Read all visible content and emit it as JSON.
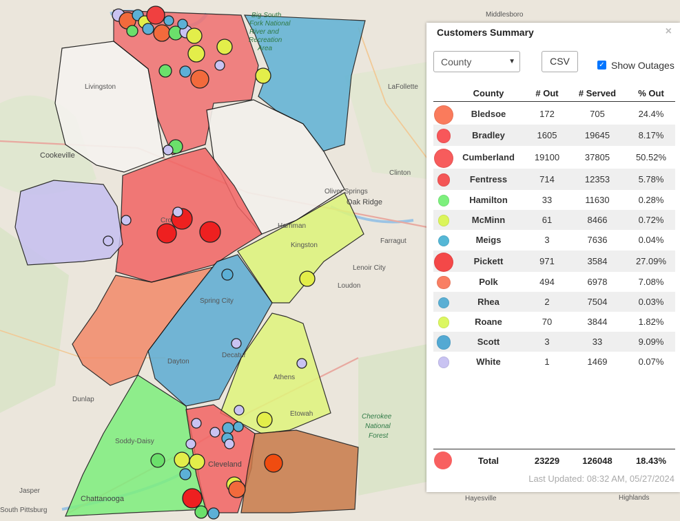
{
  "map": {
    "places": [
      {
        "name": "Middlesboro",
        "cls": "place"
      },
      {
        "name": "Livingston",
        "cls": "place"
      },
      {
        "name": "LaFollette",
        "cls": "place"
      },
      {
        "name": "Cookeville",
        "cls": "place-lg"
      },
      {
        "name": "Clinton",
        "cls": "place"
      },
      {
        "name": "Oliver Springs",
        "cls": "place"
      },
      {
        "name": "Oak Ridge",
        "cls": "place-lg"
      },
      {
        "name": "Farragut",
        "cls": "place"
      },
      {
        "name": "Harriman",
        "cls": "place"
      },
      {
        "name": "Kingston",
        "cls": "place"
      },
      {
        "name": "Crossville",
        "cls": "place"
      },
      {
        "name": "Lenoir City",
        "cls": "place"
      },
      {
        "name": "Loudon",
        "cls": "place"
      },
      {
        "name": "Spring City",
        "cls": "place"
      },
      {
        "name": "Dayton",
        "cls": "place"
      },
      {
        "name": "Decatur",
        "cls": "place"
      },
      {
        "name": "Athens",
        "cls": "place"
      },
      {
        "name": "Dunlap",
        "cls": "place"
      },
      {
        "name": "Etowah",
        "cls": "place"
      },
      {
        "name": "Soddy-Daisy",
        "cls": "place"
      },
      {
        "name": "Cleveland",
        "cls": "place-lg"
      },
      {
        "name": "Chattanooga",
        "cls": "place-lg"
      },
      {
        "name": "Jasper",
        "cls": "place"
      },
      {
        "name": "South Pittsburg",
        "cls": "place"
      },
      {
        "name": "Hayesville",
        "cls": "place"
      },
      {
        "name": "Highlands",
        "cls": "place"
      }
    ],
    "green_labels": [
      "Big South",
      "Fork National",
      "River and",
      "Recreation",
      "Area",
      "Cherokee",
      "National",
      "Forest"
    ]
  },
  "panel": {
    "title": "Customers Summary",
    "close_icon": "×",
    "group_select": "County",
    "csv_label": "CSV",
    "show_outages_label": "Show Outages",
    "show_outages_checked": true,
    "headers": {
      "name": "County",
      "out": "# Out",
      "served": "# Served",
      "pct": "% Out"
    },
    "rows": [
      {
        "name": "Bledsoe",
        "out": "172",
        "served": "705",
        "pct": "24.4%",
        "color": "#fa7b5c"
      },
      {
        "name": "Bradley",
        "out": "1605",
        "served": "19645",
        "pct": "8.17%",
        "color": "#f8575a"
      },
      {
        "name": "Cumberland",
        "out": "19100",
        "served": "37805",
        "pct": "50.52%",
        "color": "#f75c5c"
      },
      {
        "name": "Fentress",
        "out": "714",
        "served": "12353",
        "pct": "5.78%",
        "color": "#f45656"
      },
      {
        "name": "Hamilton",
        "out": "33",
        "served": "11630",
        "pct": "0.28%",
        "color": "#7df07d"
      },
      {
        "name": "McMinn",
        "out": "61",
        "served": "8466",
        "pct": "0.72%",
        "color": "#dbf55b"
      },
      {
        "name": "Meigs",
        "out": "3",
        "served": "7636",
        "pct": "0.04%",
        "color": "#55b7d6"
      },
      {
        "name": "Pickett",
        "out": "971",
        "served": "3584",
        "pct": "27.09%",
        "color": "#f44848"
      },
      {
        "name": "Polk",
        "out": "494",
        "served": "6978",
        "pct": "7.08%",
        "color": "#f97f63"
      },
      {
        "name": "Rhea",
        "out": "2",
        "served": "7504",
        "pct": "0.03%",
        "color": "#5aafd4"
      },
      {
        "name": "Roane",
        "out": "70",
        "served": "3844",
        "pct": "1.82%",
        "color": "#dcf760"
      },
      {
        "name": "Scott",
        "out": "3",
        "served": "33",
        "pct": "9.09%",
        "color": "#53a9d3"
      },
      {
        "name": "White",
        "out": "1",
        "served": "1469",
        "pct": "0.07%",
        "color": "#c9c3f2"
      }
    ],
    "total": {
      "name": "Total",
      "out": "23229",
      "served": "126048",
      "pct": "18.43%",
      "color": "#f86060"
    },
    "last_updated": "Last Updated: 08:32 AM, 05/27/2024"
  }
}
